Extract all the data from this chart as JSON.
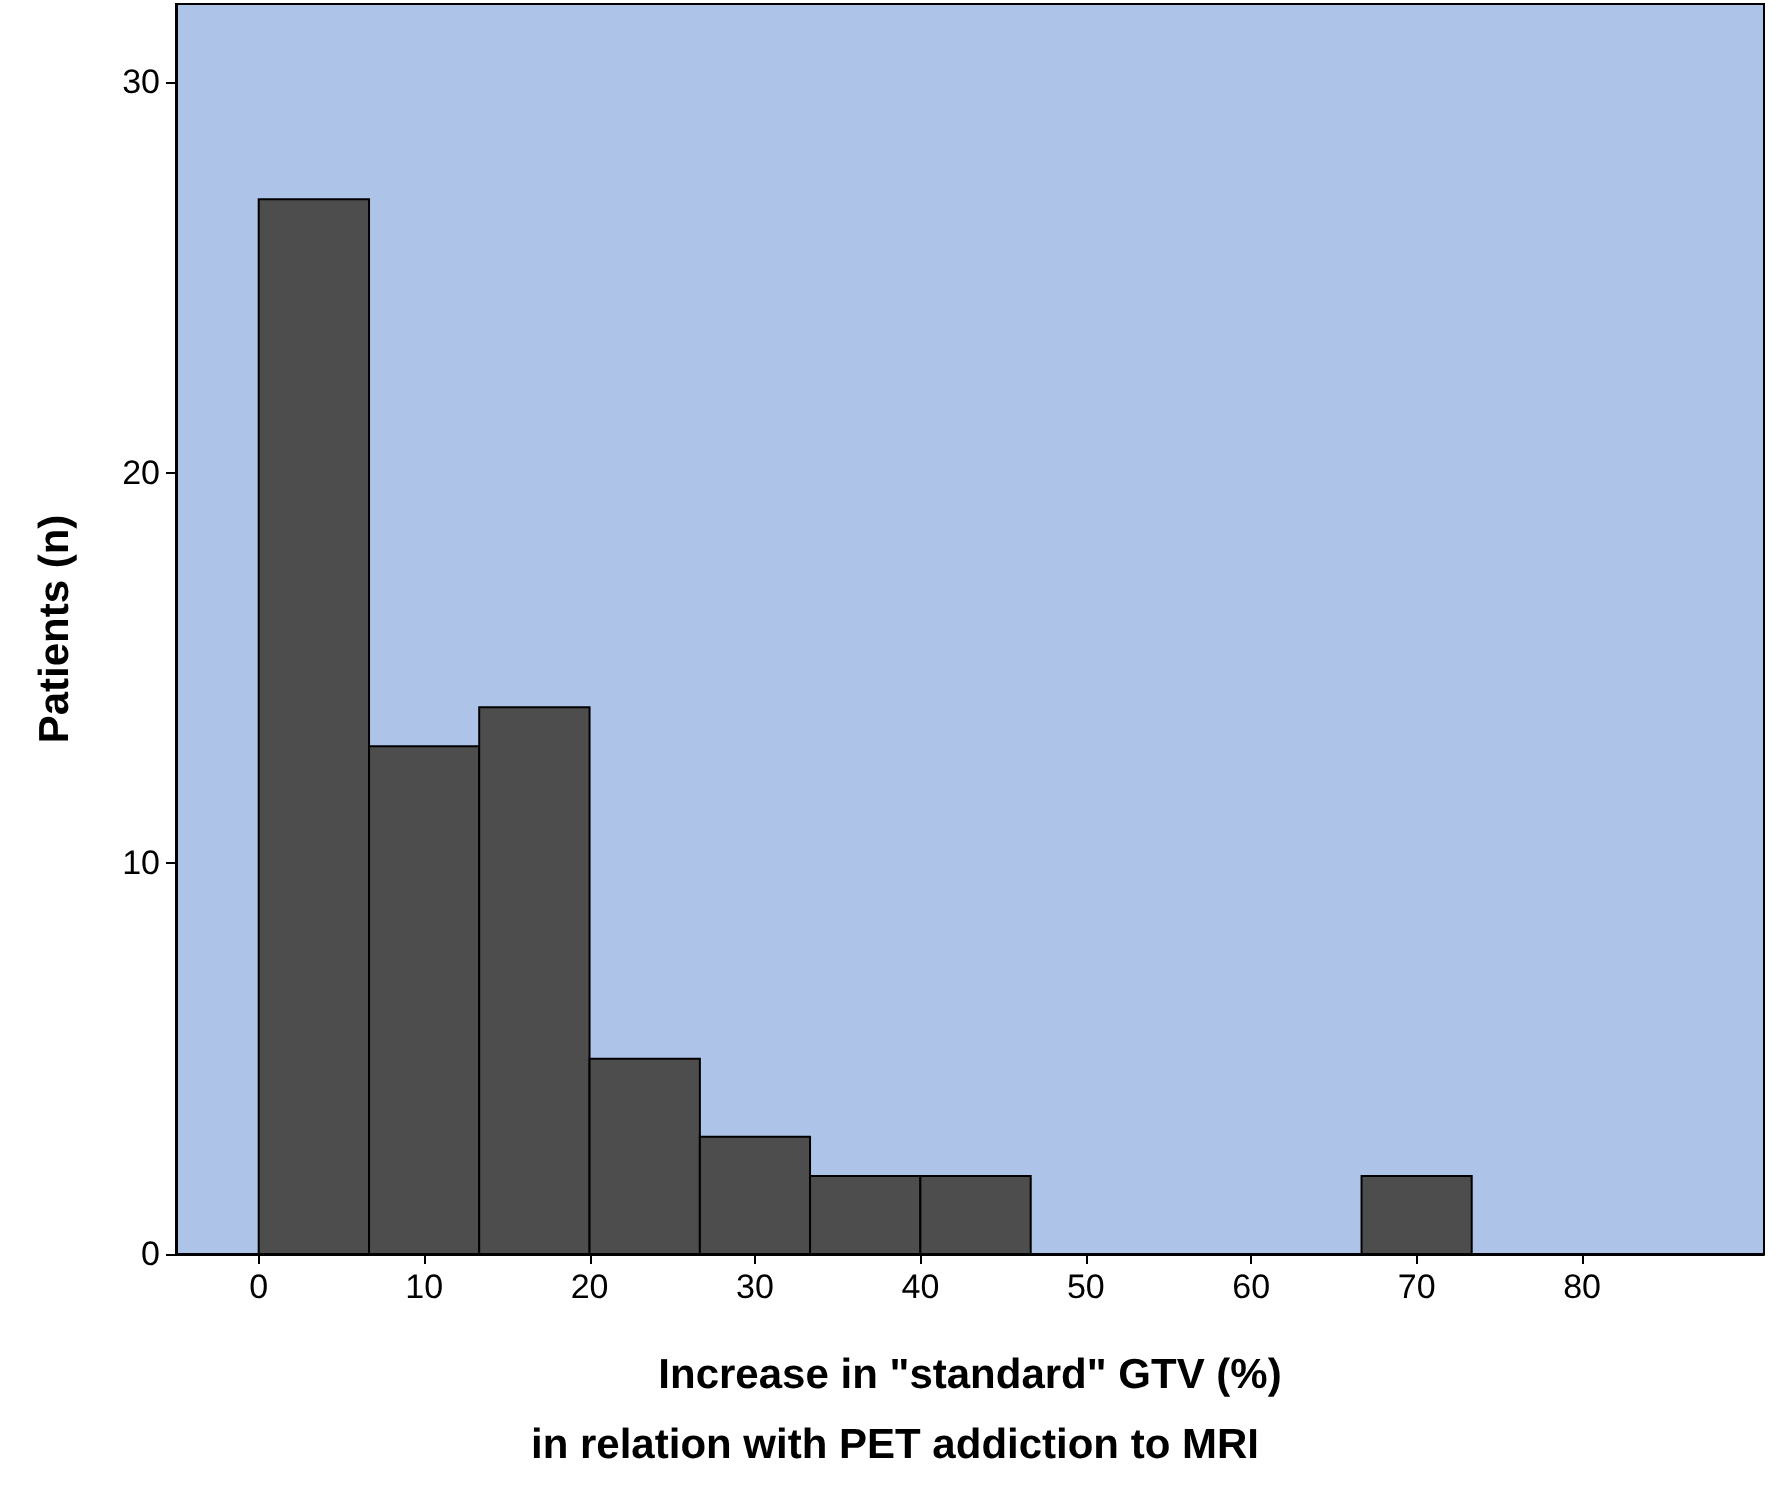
{
  "chart_data": {
    "type": "histogram",
    "xlabel": "Increase in \"standard\" GTV (%)",
    "ylabel": "Patients (n)",
    "annotations": [
      "in relation with PET addiction to MRI"
    ],
    "bins": [
      0,
      6.67,
      13.33,
      20,
      26.67,
      33.33,
      40,
      46.67,
      53.33,
      60,
      66.67,
      73.33
    ],
    "values": [
      27,
      13,
      14,
      5,
      3,
      2,
      2,
      0,
      0,
      0,
      2
    ],
    "color": "#4d4d4d",
    "xlim": [
      -5,
      91
    ],
    "xticks": [
      0,
      10,
      20,
      30,
      40,
      50,
      60,
      70,
      80
    ],
    "ylim": [
      0,
      32
    ],
    "yticks": [
      0,
      10,
      20,
      30
    ],
    "grid": false
  }
}
